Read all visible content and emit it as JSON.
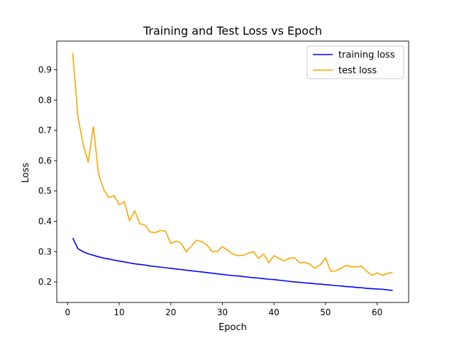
{
  "chart_data": {
    "type": "line",
    "title": "Training and Test Loss vs Epoch",
    "xlabel": "Epoch",
    "ylabel": "Loss",
    "xlim": [
      -2.1,
      66.1
    ],
    "ylim": [
      0.1325,
      0.9945
    ],
    "xticks": [
      0,
      10,
      20,
      30,
      40,
      50,
      60
    ],
    "yticks": [
      0.2,
      0.3,
      0.4,
      0.5,
      0.6,
      0.7,
      0.8,
      0.9
    ],
    "grid": false,
    "legend_position": "top-right",
    "x": [
      1,
      2,
      3,
      4,
      5,
      6,
      7,
      8,
      9,
      10,
      11,
      12,
      13,
      14,
      15,
      16,
      17,
      18,
      19,
      20,
      21,
      22,
      23,
      24,
      25,
      26,
      27,
      28,
      29,
      30,
      31,
      32,
      33,
      34,
      35,
      36,
      37,
      38,
      39,
      40,
      41,
      42,
      43,
      44,
      45,
      46,
      47,
      48,
      49,
      50,
      51,
      52,
      53,
      54,
      55,
      56,
      57,
      58,
      59,
      60,
      61,
      62,
      63
    ],
    "series": [
      {
        "name": "training loss",
        "color": "#0000ff",
        "values": [
          0.345,
          0.31,
          0.3,
          0.293,
          0.288,
          0.283,
          0.279,
          0.276,
          0.272,
          0.269,
          0.266,
          0.263,
          0.26,
          0.258,
          0.256,
          0.253,
          0.251,
          0.249,
          0.247,
          0.245,
          0.243,
          0.241,
          0.239,
          0.237,
          0.235,
          0.233,
          0.231,
          0.229,
          0.227,
          0.225,
          0.223,
          0.221,
          0.22,
          0.218,
          0.216,
          0.214,
          0.213,
          0.211,
          0.209,
          0.208,
          0.206,
          0.204,
          0.202,
          0.2,
          0.199,
          0.197,
          0.196,
          0.194,
          0.193,
          0.191,
          0.19,
          0.188,
          0.187,
          0.185,
          0.184,
          0.182,
          0.181,
          0.179,
          0.178,
          0.177,
          0.176,
          0.174,
          0.172
        ]
      },
      {
        "name": "test loss",
        "color": "#ffa500",
        "values": [
          0.955,
          0.745,
          0.655,
          0.595,
          0.712,
          0.555,
          0.505,
          0.478,
          0.485,
          0.455,
          0.465,
          0.402,
          0.435,
          0.392,
          0.388,
          0.365,
          0.363,
          0.37,
          0.367,
          0.327,
          0.335,
          0.328,
          0.3,
          0.318,
          0.338,
          0.333,
          0.322,
          0.3,
          0.3,
          0.317,
          0.305,
          0.292,
          0.287,
          0.288,
          0.295,
          0.3,
          0.278,
          0.292,
          0.263,
          0.287,
          0.277,
          0.27,
          0.278,
          0.28,
          0.263,
          0.265,
          0.258,
          0.245,
          0.257,
          0.28,
          0.235,
          0.237,
          0.245,
          0.255,
          0.25,
          0.25,
          0.252,
          0.235,
          0.222,
          0.23,
          0.222,
          0.228,
          0.232
        ]
      }
    ]
  }
}
